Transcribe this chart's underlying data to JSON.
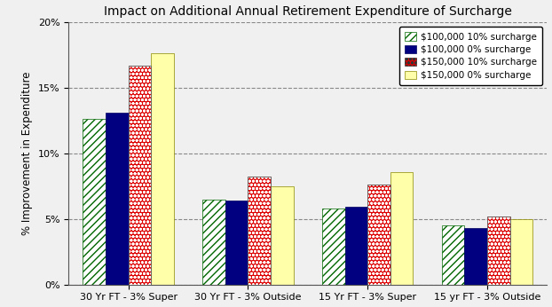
{
  "title": "Impact on Additional Annual Retirement Expenditure of Surcharge",
  "ylabel": "% Improvement in Expenditure",
  "categories": [
    "30 Yr FT - 3% Super",
    "30 Yr FT - 3% Outside",
    "15 Yr FT - 3% Super",
    "15 yr FT - 3% Outside"
  ],
  "series": [
    {
      "label": "$100,000 10% surcharge",
      "values": [
        0.126,
        0.065,
        0.058,
        0.045
      ],
      "style": "hatch_green"
    },
    {
      "label": "$100,000 0% surcharge",
      "values": [
        0.131,
        0.064,
        0.059,
        0.043
      ],
      "style": "solid_navy"
    },
    {
      "label": "$150,000 10% surcharge",
      "values": [
        0.167,
        0.082,
        0.076,
        0.052
      ],
      "style": "hatch_red"
    },
    {
      "label": "$150,000 0% surcharge",
      "values": [
        0.176,
        0.075,
        0.086,
        0.05
      ],
      "style": "solid_yellow"
    }
  ],
  "ylim": [
    0,
    0.2
  ],
  "yticks": [
    0.0,
    0.05,
    0.1,
    0.15,
    0.2
  ],
  "ytick_labels": [
    "0%",
    "5%",
    "10%",
    "15%",
    "20%"
  ],
  "bar_width": 0.19,
  "background_color": "#f0f0f0",
  "plot_bg_color": "#f0f0f0",
  "grid_color": "#888888",
  "title_fontsize": 10,
  "axis_fontsize": 8.5,
  "tick_fontsize": 8,
  "legend_fontsize": 7.5
}
